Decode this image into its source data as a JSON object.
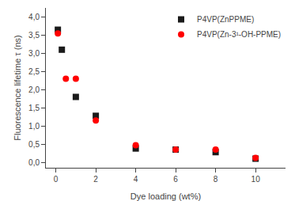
{
  "chart_data": {
    "type": "scatter",
    "xlabel": "Dye loading (wt%)",
    "ylabel": "Fluorescence lifetime τ (ns)",
    "series": [
      {
        "name": "P4VP(ZnPPME)",
        "color": "#1a1a1a",
        "marker": "square",
        "x": [
          0.1,
          0.3,
          1,
          2,
          4,
          6,
          8,
          10
        ],
        "values": [
          3.65,
          3.1,
          1.8,
          1.28,
          0.38,
          0.35,
          0.28,
          0.1
        ]
      },
      {
        "name": "P4VP(Zn-3¹-OH-PPME)",
        "color": "#ff0000",
        "marker": "circle",
        "x": [
          0.1,
          0.5,
          1,
          2,
          4,
          6,
          8,
          10
        ],
        "values": [
          3.55,
          2.3,
          2.3,
          1.15,
          0.47,
          0.35,
          0.35,
          0.12
        ]
      }
    ],
    "xlim": [
      -0.5,
      11.5
    ],
    "ylim": [
      -0.15,
      4.25
    ],
    "xticks": [
      0,
      2,
      4,
      6,
      8,
      10
    ],
    "yticks": [
      {
        "value": 0.0,
        "label": "0,0"
      },
      {
        "value": 0.5,
        "label": "0,5"
      },
      {
        "value": 1.0,
        "label": "1,0"
      },
      {
        "value": 1.5,
        "label": "1,5"
      },
      {
        "value": 2.0,
        "label": "2,0"
      },
      {
        "value": 2.5,
        "label": "2,5"
      },
      {
        "value": 3.0,
        "label": "3,0"
      },
      {
        "value": 3.5,
        "label": "3,5"
      },
      {
        "value": 4.0,
        "label": "4,0"
      }
    ],
    "grid": false,
    "legend": "upper right"
  }
}
